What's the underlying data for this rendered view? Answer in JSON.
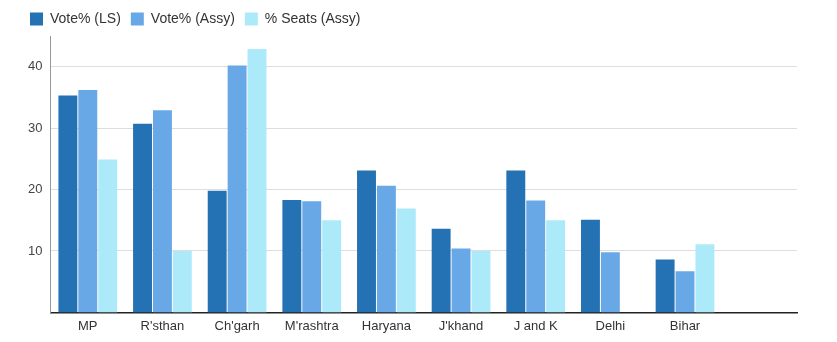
{
  "chart_data": {
    "type": "bar",
    "categories": [
      "MP",
      "R'sthan",
      "Ch'garh",
      "M'rashtra",
      "Haryana",
      "J'khand",
      "J and K",
      "Delhi",
      "Bihar",
      null
    ],
    "series": [
      {
        "name": "Vote% (LS)",
        "color": "#2471b3",
        "values": [
          35.3,
          30.7,
          19.8,
          18.3,
          23.1,
          13.6,
          23.1,
          15.1,
          8.6,
          null
        ]
      },
      {
        "name": "Vote% (Assy)",
        "color": "#69a8e6",
        "values": [
          36.2,
          32.9,
          40.2,
          18.1,
          20.6,
          10.4,
          18.2,
          9.8,
          6.7,
          null
        ]
      },
      {
        "name": "% Seats (Assy)",
        "color": "#adeaf9",
        "values": [
          24.9,
          10,
          42.9,
          15,
          16.9,
          10,
          15,
          0,
          11.1,
          null
        ]
      }
    ],
    "ylim": [
      0,
      45
    ],
    "yticks": [
      10,
      20,
      30,
      40
    ],
    "grid": true,
    "legend": "top-left"
  }
}
